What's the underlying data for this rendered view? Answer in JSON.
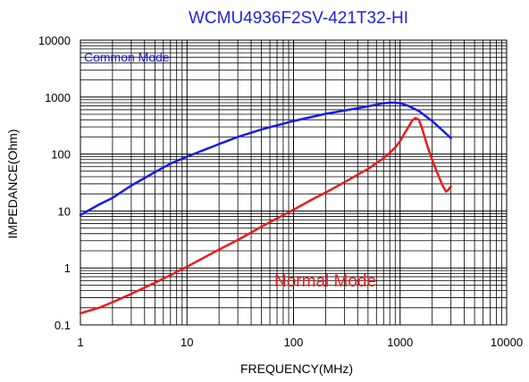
{
  "chart_data": {
    "type": "line",
    "title": "WCMU4936F2SV-421T32-HI",
    "xlabel": "FREQUENCY(MHz)",
    "ylabel": "IMPEDANCE(Ohm)",
    "x_scale": "log",
    "y_scale": "log",
    "xlim": [
      1,
      10000
    ],
    "ylim": [
      0.1,
      10000
    ],
    "x_ticks": [
      "1",
      "10",
      "100",
      "1000",
      "10000"
    ],
    "y_ticks": [
      "0.1",
      "1",
      "10",
      "100",
      "1000",
      "10000"
    ],
    "grid": true,
    "series": [
      {
        "name": "Common Mode",
        "color": "#1a1aee",
        "label_position": "top-left",
        "x": [
          1,
          1.5,
          2,
          3,
          5,
          7,
          10,
          20,
          30,
          50,
          70,
          100,
          150,
          200,
          300,
          500,
          700,
          800,
          900,
          1000,
          1200,
          1500,
          2000,
          2500,
          3000
        ],
        "y": [
          8.5,
          13,
          17,
          28,
          48,
          68,
          90,
          150,
          200,
          270,
          320,
          380,
          450,
          510,
          580,
          690,
          780,
          800,
          800,
          780,
          700,
          570,
          380,
          260,
          190
        ]
      },
      {
        "name": "Normal Mode",
        "color": "#ee1a1a",
        "label_position": "center",
        "x": [
          1,
          1.5,
          2,
          3,
          5,
          7,
          10,
          20,
          30,
          50,
          70,
          100,
          150,
          200,
          300,
          500,
          700,
          800,
          900,
          1000,
          1100,
          1200,
          1300,
          1400,
          1500,
          1600,
          1800,
          2000,
          2200,
          2500,
          2700,
          2800,
          3000
        ],
        "y": [
          0.16,
          0.2,
          0.25,
          0.35,
          0.55,
          0.75,
          1.05,
          2.1,
          3.1,
          5.3,
          7.4,
          10.5,
          16,
          21,
          32,
          55,
          85,
          105,
          130,
          170,
          230,
          300,
          390,
          430,
          400,
          290,
          140,
          80,
          50,
          28,
          22,
          23,
          27
        ]
      }
    ]
  }
}
